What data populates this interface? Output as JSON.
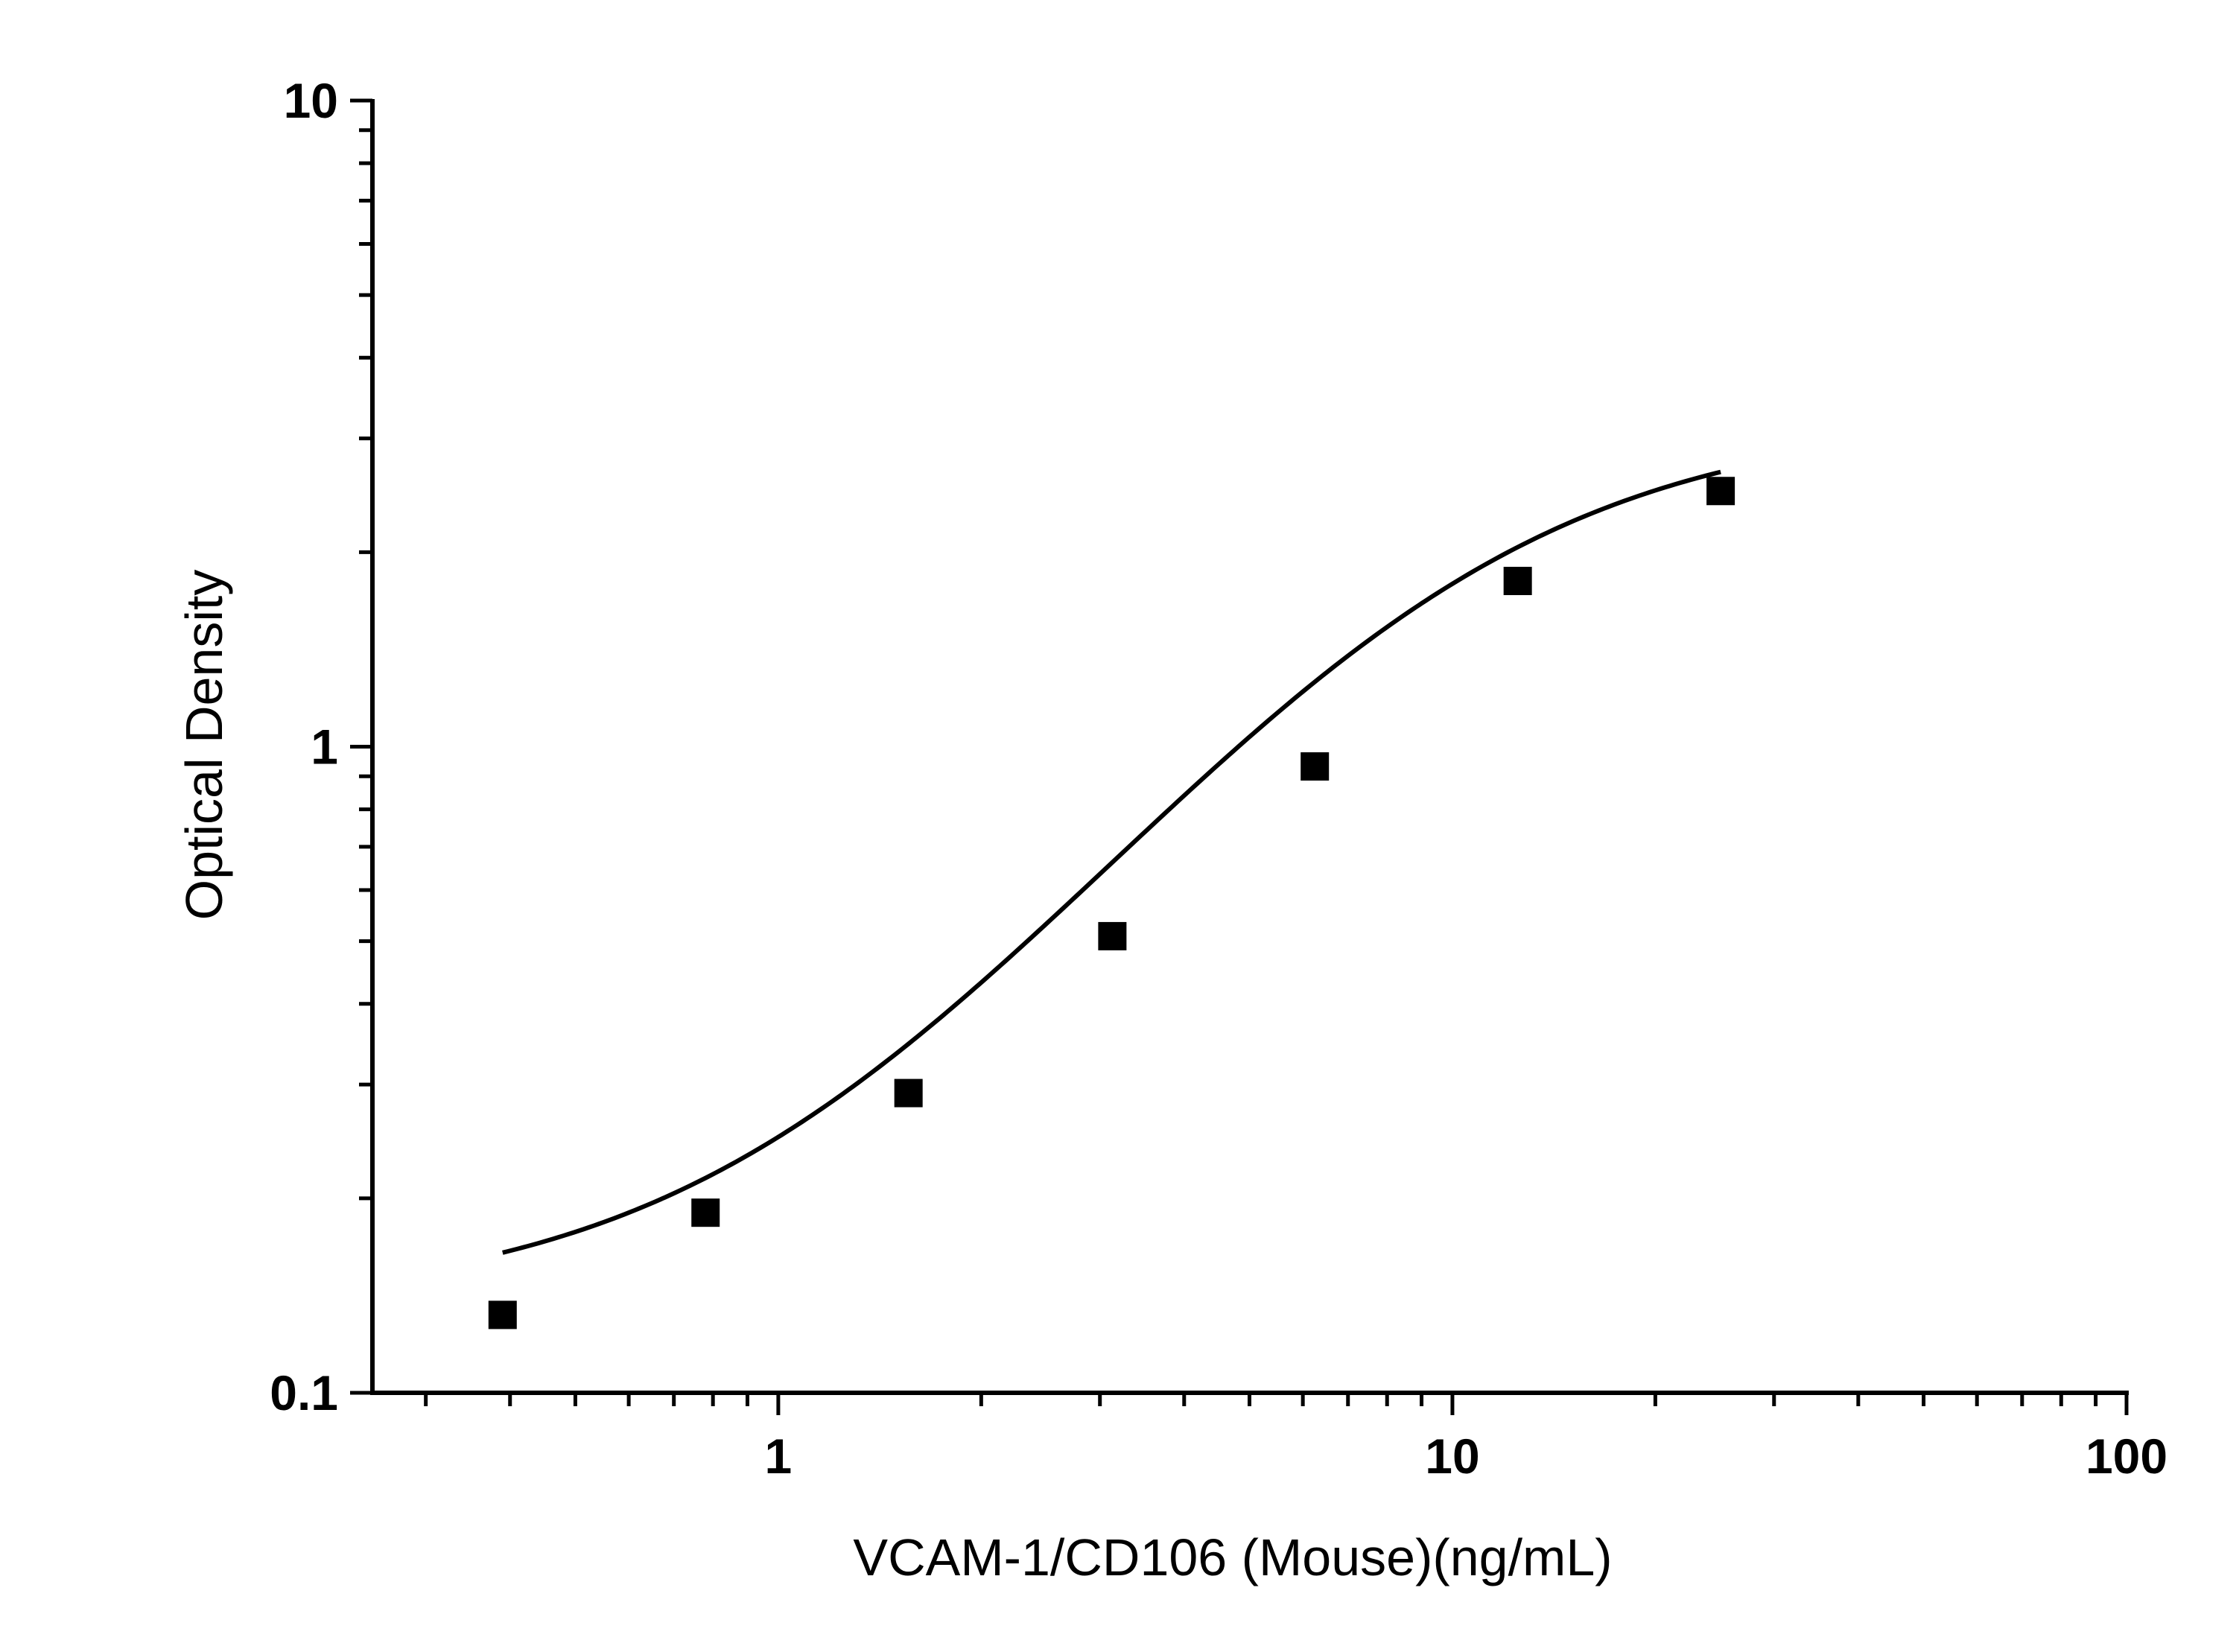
{
  "chart_data": {
    "type": "scatter",
    "xlabel": "VCAM-1/CD106 (Mouse)(ng/mL)",
    "ylabel": "Optical Density",
    "xscale": "log",
    "yscale": "log",
    "xlim": [
      0.25,
      100
    ],
    "ylim": [
      0.1,
      10
    ],
    "x_ticks": [
      "1",
      "10",
      "100"
    ],
    "y_ticks": [
      "0.1",
      "1",
      "10"
    ],
    "grid": false,
    "legend": "none",
    "colors": {
      "marker": "#000000",
      "curve": "#000000",
      "axis": "#000000"
    },
    "series": [
      {
        "points": [
          {
            "x": 0.39,
            "y": 0.132
          },
          {
            "x": 0.78,
            "y": 0.19
          },
          {
            "x": 1.56,
            "y": 0.291
          },
          {
            "x": 3.13,
            "y": 0.509
          },
          {
            "x": 6.25,
            "y": 0.932
          },
          {
            "x": 12.5,
            "y": 1.805
          },
          {
            "x": 25,
            "y": 2.487
          }
        ]
      }
    ],
    "fit_curve": {
      "type": "4PL",
      "A": 0.136,
      "D": 3.232,
      "C": 9.14,
      "B": 1.48,
      "x_range": [
        0.39,
        25
      ]
    }
  }
}
